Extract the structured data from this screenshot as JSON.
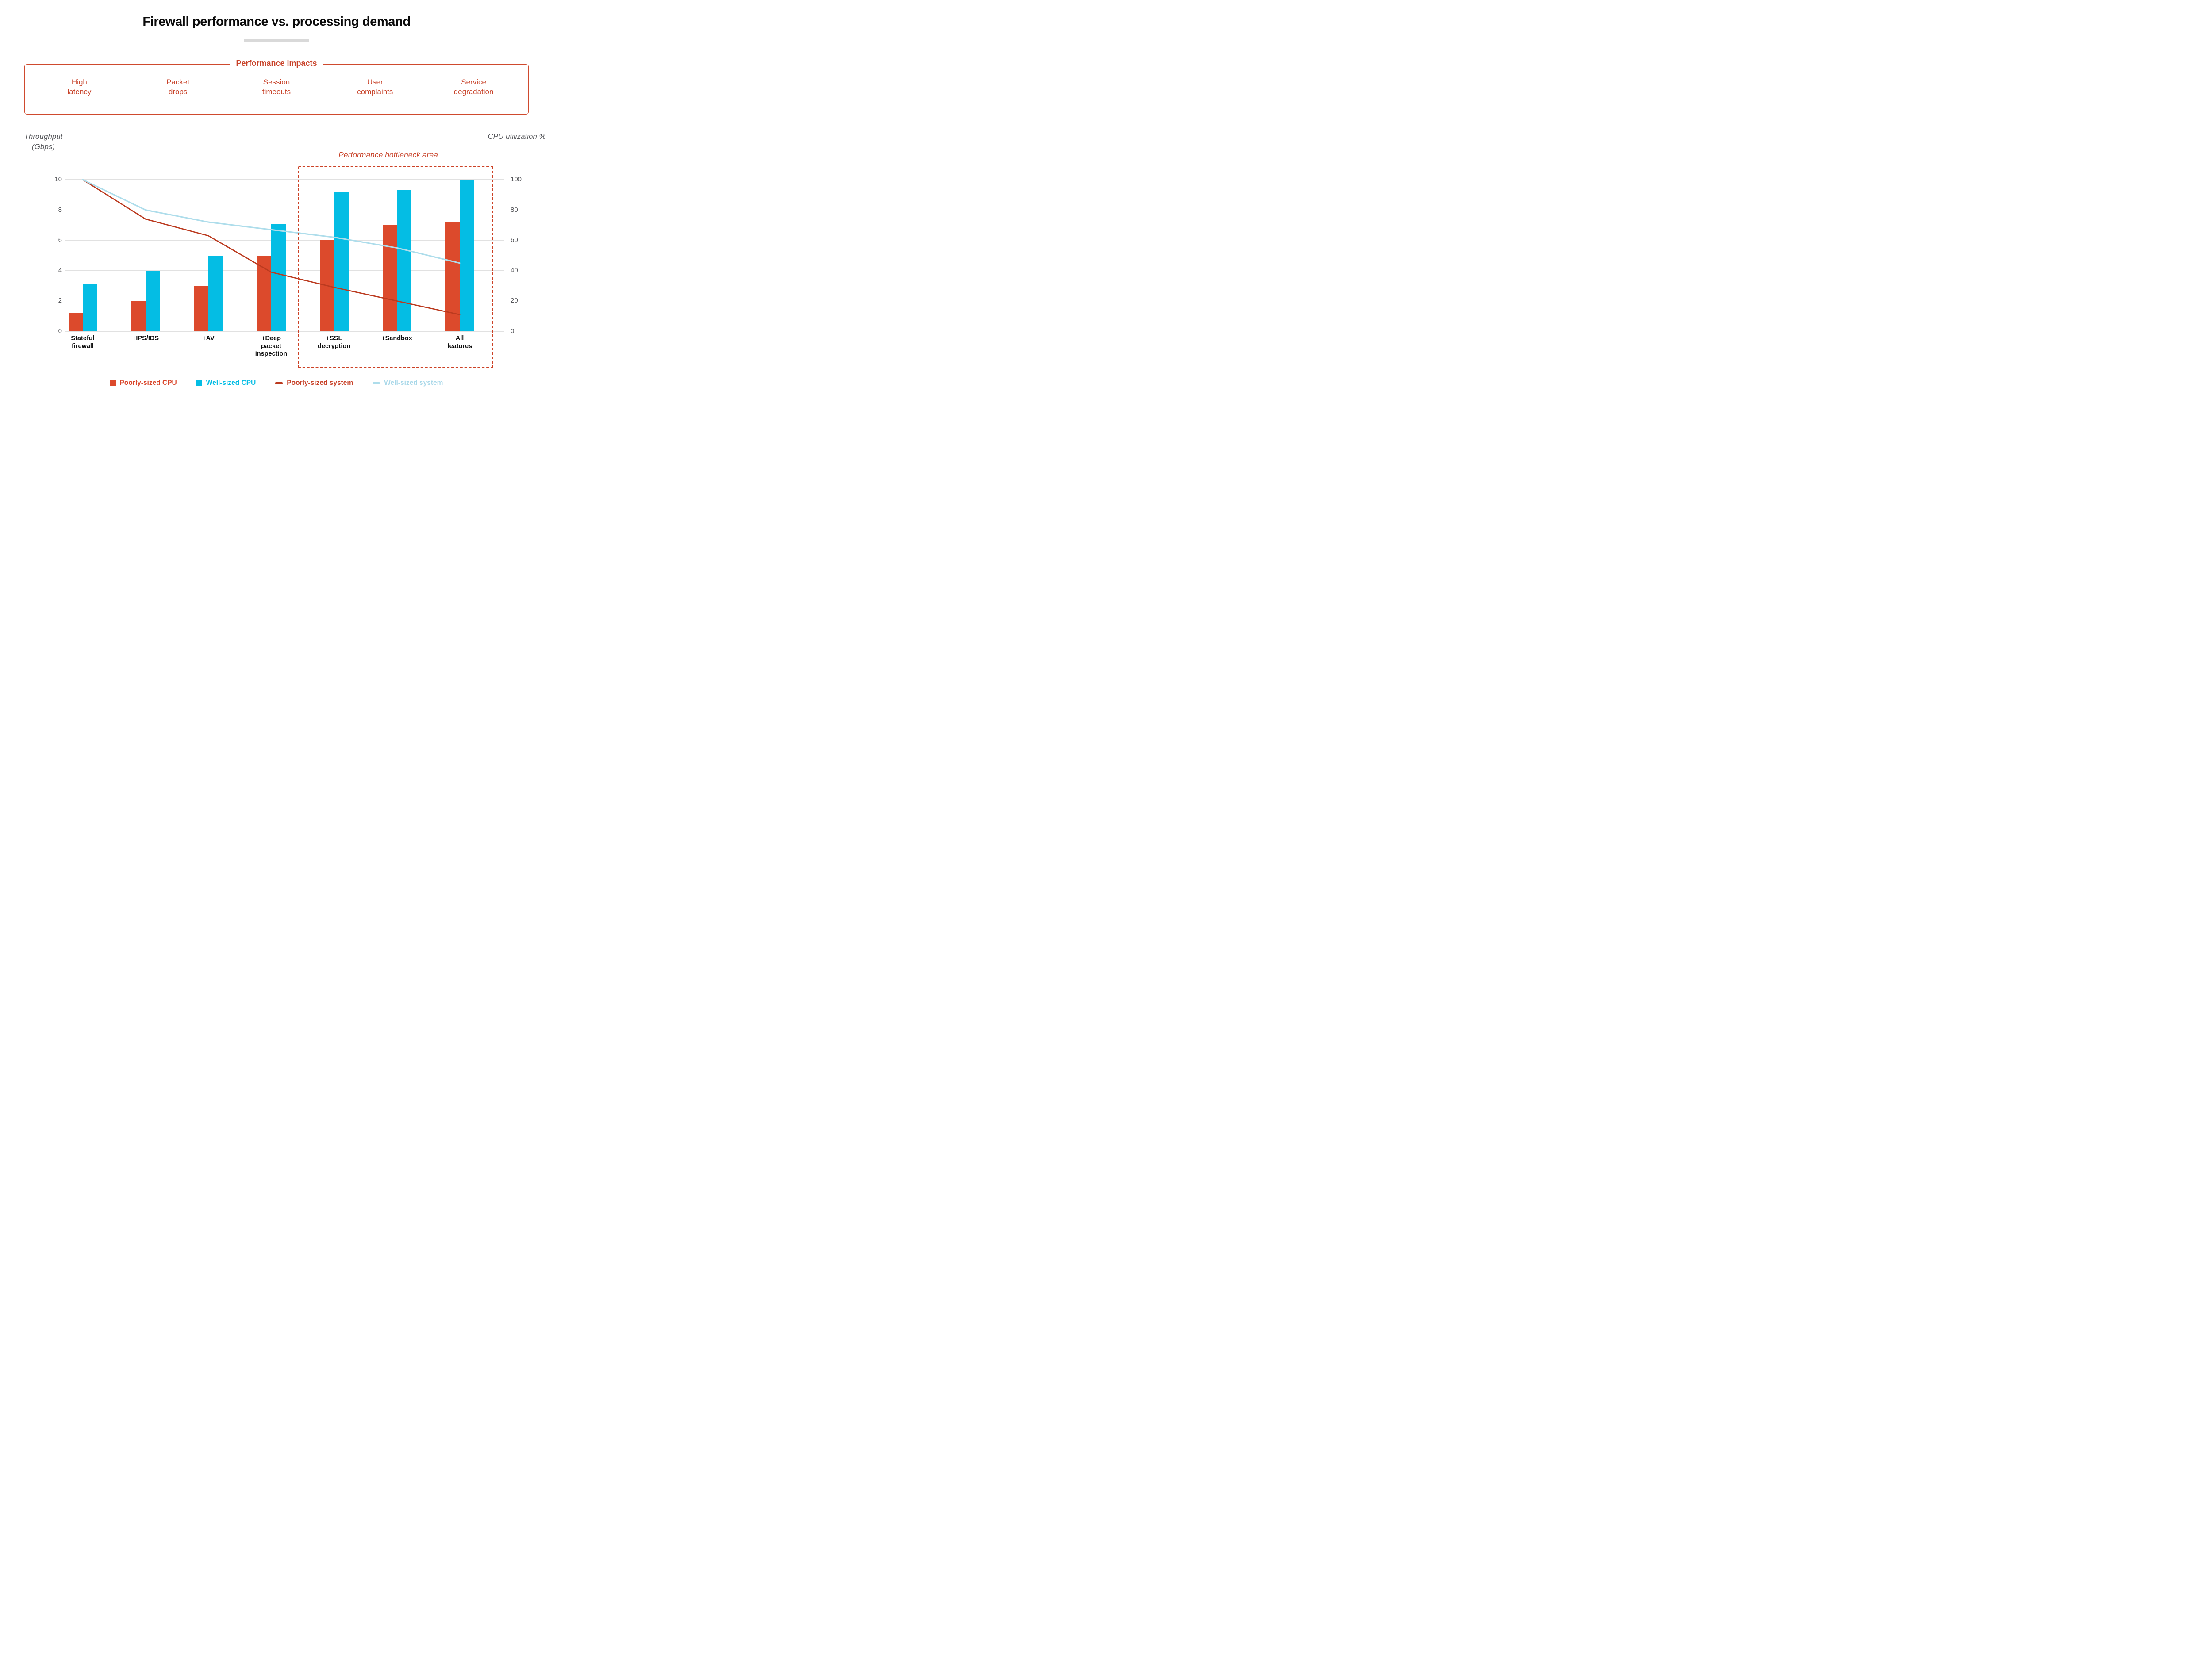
{
  "title": "Firewall performance vs. processing demand",
  "impacts": {
    "heading": "Performance impacts",
    "items": [
      "High\nlatency",
      "Packet\ndrops",
      "Session\ntimeouts",
      "User\ncomplaints",
      "Service\ndegradation"
    ]
  },
  "axes": {
    "left_label": "Throughput (Gbps)",
    "right_label": "CPU utilization %",
    "left_ticks": [
      10,
      8,
      6,
      4,
      2,
      0
    ],
    "right_ticks": [
      100,
      80,
      60,
      40,
      20,
      0
    ]
  },
  "annotation": {
    "label": "Performance bottleneck area"
  },
  "colors": {
    "bar_poorly": "#dc4a2c",
    "bar_well": "#04bde4",
    "line_poorly": "#bb3a1f",
    "line_well": "#aeddeb",
    "accent_red_text": "#c8432a",
    "axis_text": "#55565a",
    "gridline": "#e1e1e1",
    "dotted_box": "#cc4125"
  },
  "legend": [
    {
      "label": "Poorly-sized CPU",
      "swatch": "square",
      "color": "#dc4a2c",
      "text_color": "#d9452a"
    },
    {
      "label": "Well-sized CPU",
      "swatch": "square",
      "color": "#04bde4",
      "text_color": "#04bde4"
    },
    {
      "label": "Poorly-sized system",
      "swatch": "line",
      "color": "#bb3a1f",
      "text_color": "#c8432a"
    },
    {
      "label": "Well-sized system",
      "swatch": "line",
      "color": "#aeddeb",
      "text_color": "#a9d8e9"
    }
  ],
  "chart_data": {
    "type": "bar+line",
    "categories": [
      "Stateful\nfirewall",
      "+IPS/IDS",
      "+AV",
      "+Deep\npacket\ninspection",
      "+SSL\ndecryption",
      "+Sandbox",
      "All\nfeatures"
    ],
    "bar_series": [
      {
        "name": "Poorly-sized CPU",
        "axis": "right",
        "unit": "%",
        "color": "#dc4a2c",
        "values": [
          12,
          20,
          30,
          50,
          60,
          70,
          72
        ]
      },
      {
        "name": "Well-sized CPU",
        "axis": "right",
        "unit": "%",
        "color": "#04bde4",
        "values": [
          31,
          40,
          50,
          71,
          92,
          93,
          100
        ]
      }
    ],
    "line_series": [
      {
        "name": "Poorly-sized system",
        "axis": "left",
        "unit": "Gbps",
        "color": "#bb3a1f",
        "width": 2.7,
        "values": [
          10,
          7.4,
          6.3,
          3.9,
          2.9,
          2.0,
          1.1
        ]
      },
      {
        "name": "Well-sized system",
        "axis": "left",
        "unit": "Gbps",
        "color": "#aeddeb",
        "width": 3.1,
        "values": [
          10,
          8.0,
          7.2,
          6.7,
          6.2,
          5.5,
          4.5
        ]
      }
    ],
    "left_axis": {
      "label": "Throughput (Gbps)",
      "range": [
        0,
        10
      ]
    },
    "right_axis": {
      "label": "CPU utilization %",
      "range": [
        0,
        100
      ]
    },
    "grid": "horizontal",
    "legend_position": "bottom",
    "annotation_box_categories": [
      "+SSL decryption",
      "+Sandbox",
      "All features"
    ]
  }
}
